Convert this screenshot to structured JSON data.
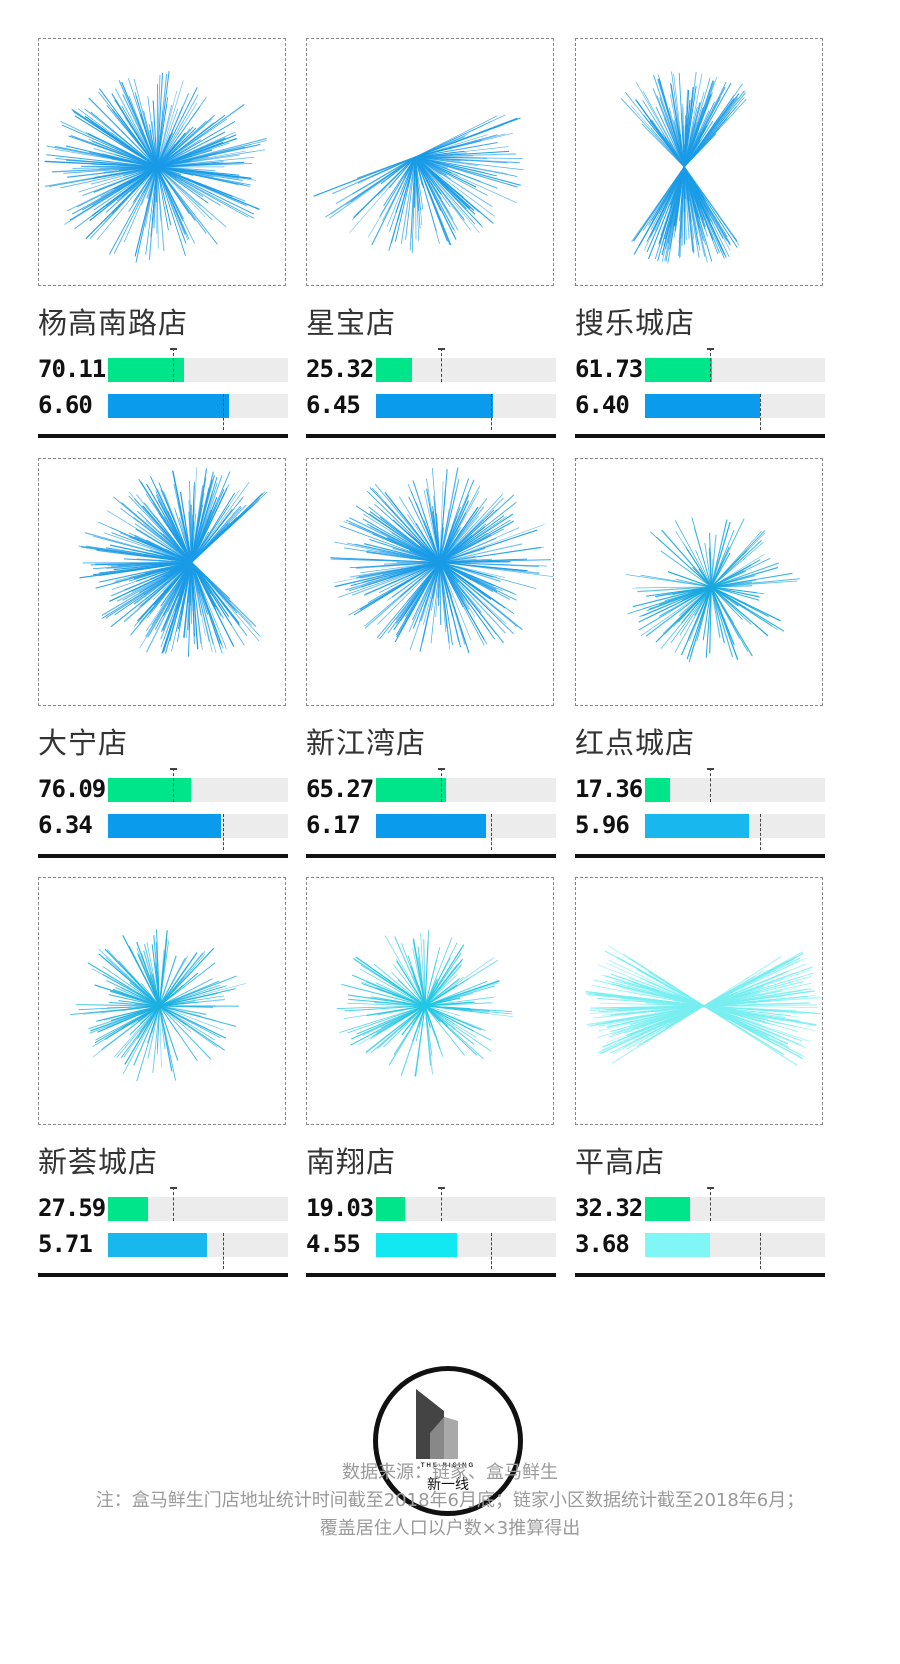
{
  "colors": {
    "green": "#00e58a",
    "track": "#ececec",
    "axis": "#111111",
    "footer_text": "#9a9a9a"
  },
  "chart_data": [
    {
      "type": "bar",
      "store": "杨高南路店",
      "value_top": "70.11",
      "value_bottom": "6.60",
      "top_fill": 0.42,
      "bottom_fill": 0.67,
      "ray_color": "#1a9be6",
      "bar_color": "#0a9bec",
      "seed": 11,
      "rays": 260,
      "center": [
        0.48,
        0.52
      ],
      "angle_spread": "full"
    },
    {
      "type": "bar",
      "store": "星宝店",
      "value_top": "25.32",
      "value_bottom": "6.45",
      "top_fill": 0.2,
      "bottom_fill": 0.65,
      "ray_color": "#1a9be6",
      "bar_color": "#0a9bec",
      "seed": 23,
      "rays": 140,
      "center": [
        0.44,
        0.48
      ],
      "angle_spread": "east-south"
    },
    {
      "type": "bar",
      "store": "搜乐城店",
      "value_top": "61.73",
      "value_bottom": "6.40",
      "top_fill": 0.37,
      "bottom_fill": 0.64,
      "ray_color": "#1a9be6",
      "bar_color": "#0a9bec",
      "seed": 37,
      "rays": 240,
      "center": [
        0.44,
        0.52
      ],
      "angle_spread": "north-south"
    },
    {
      "type": "bar",
      "store": "大宁店",
      "value_top": "76.09",
      "value_bottom": "6.34",
      "top_fill": 0.46,
      "bottom_fill": 0.63,
      "ray_color": "#1a9be6",
      "bar_color": "#0a9bec",
      "seed": 41,
      "rays": 300,
      "center": [
        0.62,
        0.42
      ],
      "angle_spread": "west-wide"
    },
    {
      "type": "bar",
      "store": "新江湾店",
      "value_top": "65.27",
      "value_bottom": "6.17",
      "top_fill": 0.39,
      "bottom_fill": 0.61,
      "ray_color": "#1a9be6",
      "bar_color": "#0a9bec",
      "seed": 53,
      "rays": 280,
      "center": [
        0.54,
        0.42
      ],
      "angle_spread": "full"
    },
    {
      "type": "bar",
      "store": "红点城店",
      "value_top": "17.36",
      "value_bottom": "5.96",
      "top_fill": 0.14,
      "bottom_fill": 0.58,
      "ray_color": "#1aa8e0",
      "bar_color": "#18b8ef",
      "seed": 61,
      "rays": 130,
      "center": [
        0.55,
        0.52
      ],
      "angle_spread": "full-small"
    },
    {
      "type": "bar",
      "store": "新荟城店",
      "value_top": "27.59",
      "value_bottom": "5.71",
      "top_fill": 0.22,
      "bottom_fill": 0.55,
      "ray_color": "#1cb0e0",
      "bar_color": "#18b8ef",
      "seed": 71,
      "rays": 150,
      "center": [
        0.49,
        0.52
      ],
      "angle_spread": "full-small"
    },
    {
      "type": "bar",
      "store": "南翔店",
      "value_top": "19.03",
      "value_bottom": "4.55",
      "top_fill": 0.16,
      "bottom_fill": 0.45,
      "ray_color": "#22c6e4",
      "bar_color": "#12e8f2",
      "seed": 83,
      "rays": 140,
      "center": [
        0.48,
        0.52
      ],
      "angle_spread": "full-small"
    },
    {
      "type": "bar",
      "store": "平高店",
      "value_top": "32.32",
      "value_bottom": "3.68",
      "top_fill": 0.25,
      "bottom_fill": 0.36,
      "ray_color": "#78eef0",
      "bar_color": "#80f6f6",
      "seed": 97,
      "rays": 260,
      "center": [
        0.52,
        0.52
      ],
      "angle_spread": "horizontal"
    }
  ],
  "logo": {
    "brand_en": "THE RISING",
    "brand_cn": "新一线"
  },
  "footer": {
    "source": "数据来源：链家、盒马鲜生",
    "note_line1": "注：盒马鲜生门店地址统计时间截至2018年6月底；链家小区数据统计截至2018年6月；",
    "note_line2": "覆盖居住人口以户数×3推算得出"
  }
}
